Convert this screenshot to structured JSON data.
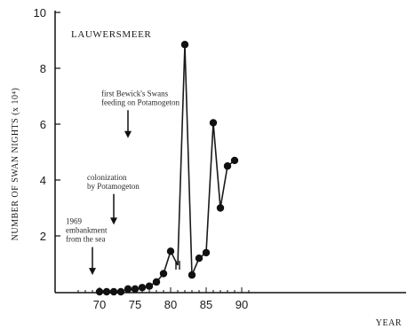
{
  "chart_data": {
    "type": "line",
    "title": "LAUWERSMEER",
    "xlabel": "YEAR",
    "ylabel": "NUMBER OF SWAN NIGHTS (x 10⁴)",
    "xlim": [
      65,
      92
    ],
    "ylim": [
      0,
      10
    ],
    "x_ticks": [
      70,
      75,
      80,
      85,
      90
    ],
    "y_ticks": [
      2,
      4,
      6,
      8,
      10
    ],
    "grid": false,
    "series": [
      {
        "x": [
          70,
          71,
          72,
          73,
          74,
          75,
          76,
          77,
          78,
          79,
          80,
          81
        ],
        "y": [
          0,
          0,
          0,
          0,
          0.1,
          0.1,
          0.15,
          0.2,
          0.35,
          0.65,
          1.45,
          0.95
        ]
      },
      {
        "x": [
          81,
          82,
          83,
          84,
          85,
          86,
          87,
          88,
          89
        ],
        "y": [
          0.95,
          8.85,
          0.6,
          1.2,
          1.4,
          6.05,
          3.0,
          4.5,
          4.7
        ]
      }
    ],
    "annotations": [
      {
        "lines": [
          "1969",
          "embankment",
          "from the sea"
        ],
        "x": 69,
        "y_from": 1.6,
        "y_to": 0.6
      },
      {
        "lines": [
          "colonization",
          "by Potamogeton"
        ],
        "x": 72,
        "y_from": 3.5,
        "y_to": 2.4
      },
      {
        "lines": [
          "first Bewick's Swans",
          "feeding on Potamogeton"
        ],
        "x": 74,
        "y_from": 6.5,
        "y_to": 5.5
      }
    ]
  }
}
